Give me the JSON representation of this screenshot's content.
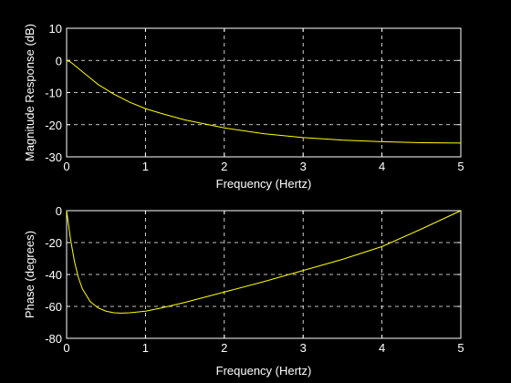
{
  "chart_data": [
    {
      "type": "line",
      "title": "",
      "xlabel": "Frequency (Hertz)",
      "ylabel": "Magnitude Response (dB)",
      "xlim": [
        0,
        5
      ],
      "ylim": [
        -30,
        10
      ],
      "xticks": [
        0,
        1,
        2,
        3,
        4,
        5
      ],
      "yticks": [
        -30,
        -20,
        -10,
        0,
        10
      ],
      "grid": true,
      "line_color": "#ffff00",
      "series": [
        {
          "x": [
            0,
            0.05,
            0.1,
            0.2,
            0.3,
            0.4,
            0.5,
            0.6,
            0.8,
            1.0,
            1.2,
            1.5,
            1.8,
            2.0,
            2.5,
            3.0,
            3.5,
            4.0,
            4.5,
            5.0
          ],
          "values": [
            0,
            -0.5,
            -1.5,
            -3.5,
            -5.5,
            -7.5,
            -9.0,
            -10.5,
            -13.0,
            -15.0,
            -16.5,
            -18.5,
            -20.0,
            -21.0,
            -22.8,
            -24.0,
            -24.8,
            -25.3,
            -25.6,
            -25.7
          ]
        }
      ]
    },
    {
      "type": "line",
      "title": "",
      "xlabel": "Frequency (Hertz)",
      "ylabel": "Phase (degrees)",
      "xlim": [
        0,
        5
      ],
      "ylim": [
        -80,
        0
      ],
      "xticks": [
        0,
        1,
        2,
        3,
        4,
        5
      ],
      "yticks": [
        -80,
        -60,
        -40,
        -20,
        0
      ],
      "grid": true,
      "line_color": "#ffff00",
      "series": [
        {
          "x": [
            0,
            0.05,
            0.1,
            0.15,
            0.2,
            0.3,
            0.4,
            0.5,
            0.6,
            0.7,
            0.8,
            1.0,
            1.2,
            1.5,
            2.0,
            2.5,
            3.0,
            3.5,
            4.0,
            4.5,
            5.0
          ],
          "values": [
            0,
            -18,
            -32,
            -42,
            -49,
            -57,
            -61,
            -63,
            -64,
            -64.2,
            -64,
            -63,
            -61,
            -57.5,
            -51,
            -44.5,
            -37.5,
            -30.5,
            -22.5,
            -11.5,
            0
          ]
        }
      ]
    }
  ]
}
